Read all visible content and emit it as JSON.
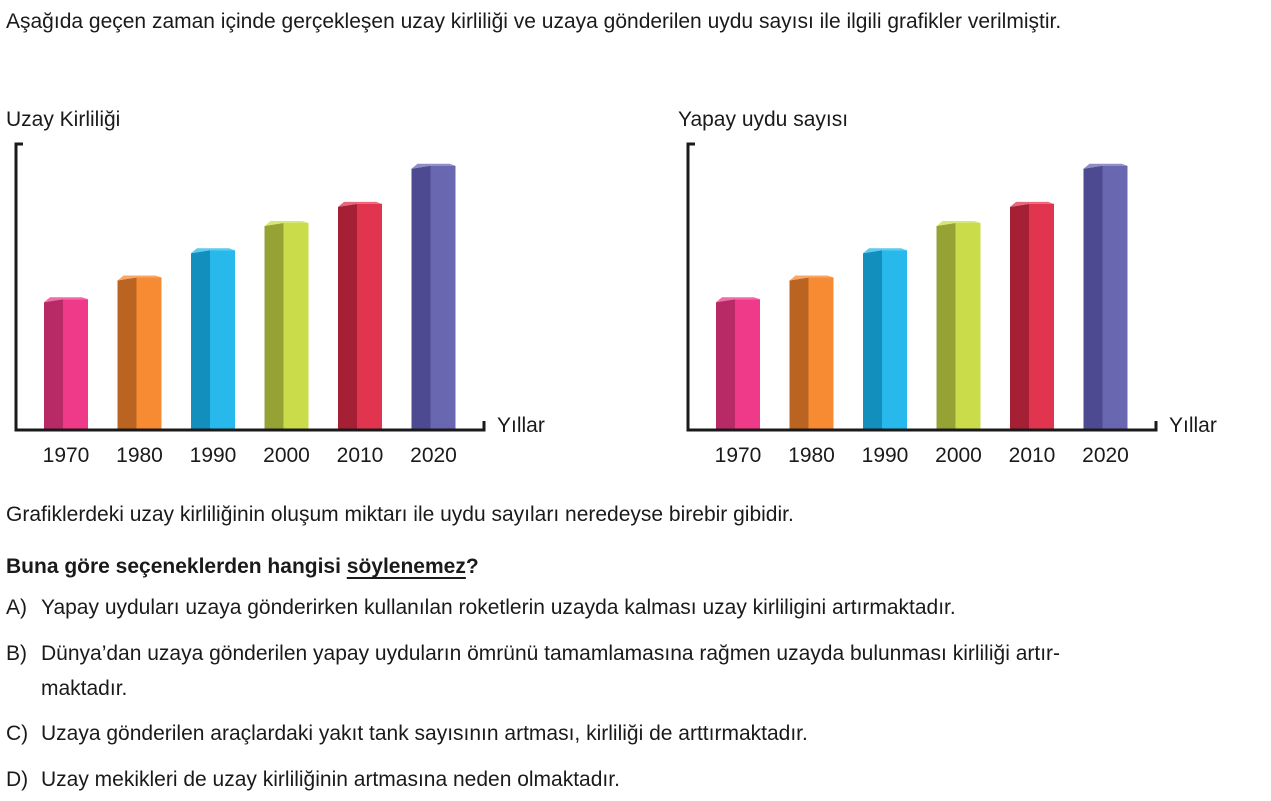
{
  "intro": "Aşağıda geçen zaman içinde gerçekleşen uzay kirliliği ve uzaya gönderilen uydu sayısı ile ilgili grafikler verilmiştir.",
  "chart_data": [
    {
      "type": "bar",
      "title": "",
      "ylabel": "Uzay Kirliliği",
      "xlabel": "Yıllar",
      "categories": [
        "1970",
        "1980",
        "1990",
        "2000",
        "2010",
        "2020"
      ],
      "values": [
        4.8,
        5.6,
        6.6,
        7.6,
        8.3,
        9.7
      ],
      "ylim": [
        0,
        10.5
      ],
      "colors": [
        "#ee3a88",
        "#f68b33",
        "#27b8ec",
        "#cbdc4a",
        "#e1344e",
        "#6a67b1"
      ],
      "side_colors": [
        "#b82a66",
        "#bb6422",
        "#138fbd",
        "#94a334",
        "#a52035",
        "#4e4a91"
      ]
    },
    {
      "type": "bar",
      "title": "",
      "ylabel": "Yapay uydu sayısı",
      "xlabel": "Yıllar",
      "categories": [
        "1970",
        "1980",
        "1990",
        "2000",
        "2010",
        "2020"
      ],
      "values": [
        4.8,
        5.6,
        6.6,
        7.6,
        8.3,
        9.7
      ],
      "ylim": [
        0,
        10.5
      ],
      "colors": [
        "#ee3a88",
        "#f68b33",
        "#27b8ec",
        "#cbdc4a",
        "#e1344e",
        "#6a67b1"
      ],
      "side_colors": [
        "#b82a66",
        "#bb6422",
        "#138fbd",
        "#94a334",
        "#a52035",
        "#4e4a91"
      ]
    }
  ],
  "note": "Grafiklerdeki uzay kirliliğinin oluşum miktarı ile uydu sayıları neredeyse birebir gibidir.",
  "question": {
    "prefix": "Buna göre seçeneklerden hangisi ",
    "emphasis": "söylenemez",
    "suffix": "?"
  },
  "options": [
    {
      "letter": "A)",
      "text": "Yapay uyduları uzaya gönderirken kullanılan roketlerin uzayda kalması uzay kirliligini artırmaktadır."
    },
    {
      "letter": "B)",
      "text": "Dünya’dan uzaya gönderilen yapay uyduların ömrünü tamamlamasına rağmen uzayda bulunması kirliliği artır-",
      "text2": "maktadır."
    },
    {
      "letter": "C)",
      "text": "Uzaya gönderilen araçlardaki yakıt tank sayısının artması, kirliliği de arttırmaktadır."
    },
    {
      "letter": "D)",
      "text": "Uzay mekikleri de uzay kirliliğinin artmasına neden olmaktadır."
    }
  ]
}
